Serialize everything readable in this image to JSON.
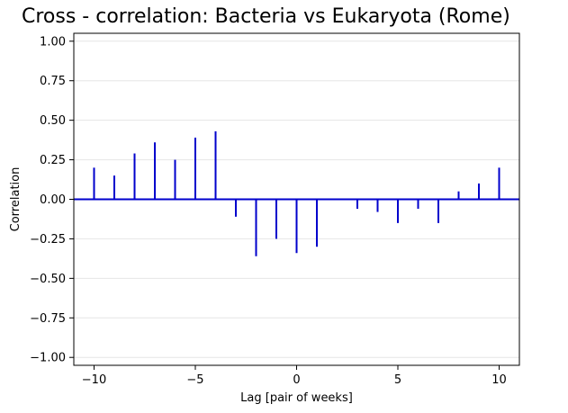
{
  "chart_data": {
    "type": "bar",
    "title": "Cross - correlation: Bacteria vs Eukaryota (Rome)",
    "xlabel": "Lag [pair of weeks]",
    "ylabel": "Correlation",
    "xlim": [
      -11,
      11
    ],
    "ylim": [
      -1.05,
      1.05
    ],
    "x_ticks": [
      -10,
      -5,
      0,
      5,
      10
    ],
    "x_tick_labels": [
      "−10",
      "−5",
      "0",
      "5",
      "10"
    ],
    "y_ticks": [
      -1.0,
      -0.75,
      -0.5,
      -0.25,
      0.0,
      0.25,
      0.5,
      0.75,
      1.0
    ],
    "y_tick_labels": [
      "−1.00",
      "−0.75",
      "−0.50",
      "−0.25",
      "0.00",
      "0.25",
      "0.50",
      "0.75",
      "1.00"
    ],
    "grid": "horizontal",
    "color": "#0000cc",
    "x": [
      -10,
      -9,
      -8,
      -7,
      -6,
      -5,
      -4,
      -3,
      -2,
      -1,
      0,
      1,
      2,
      3,
      4,
      5,
      6,
      7,
      8,
      9,
      10
    ],
    "values": [
      0.2,
      0.15,
      0.29,
      0.36,
      0.25,
      0.39,
      0.43,
      -0.11,
      -0.36,
      -0.25,
      -0.34,
      -0.3,
      0.0,
      -0.06,
      -0.08,
      -0.15,
      -0.06,
      -0.15,
      0.05,
      0.1,
      0.2
    ]
  }
}
